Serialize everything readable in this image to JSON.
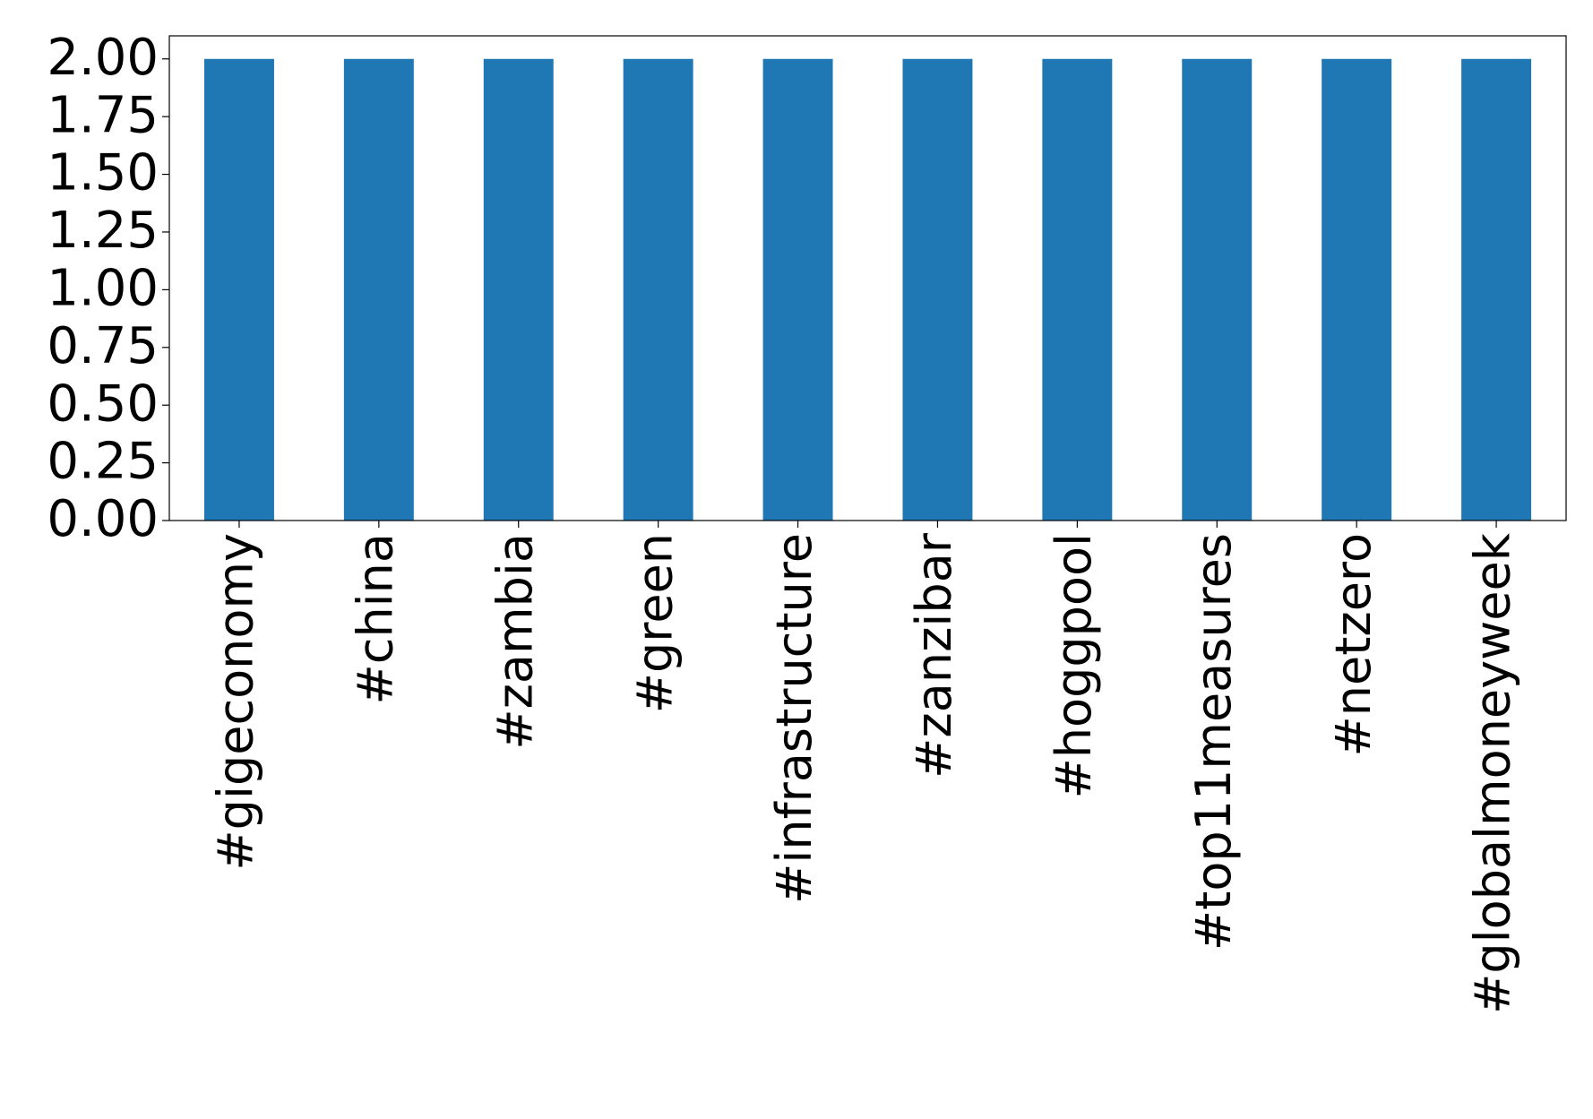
{
  "chart_data": {
    "type": "bar",
    "categories": [
      "#gigeconomy",
      "#china",
      "#zambia",
      "#green",
      "#infrastructure",
      "#zanzibar",
      "#hoggpool",
      "#top11measures",
      "#netzero",
      "#globalmoneyweek"
    ],
    "values": [
      2,
      2,
      2,
      2,
      2,
      2,
      2,
      2,
      2,
      2
    ],
    "color": "#1f77b4",
    "ylim": [
      0,
      2.1
    ],
    "yticks": [
      {
        "value": 0,
        "label": "0.00"
      },
      {
        "value": 0.25,
        "label": "0.25"
      },
      {
        "value": 0.5,
        "label": "0.50"
      },
      {
        "value": 0.75,
        "label": "0.75"
      },
      {
        "value": 1,
        "label": "1.00"
      },
      {
        "value": 1.25,
        "label": "1.25"
      },
      {
        "value": 1.5,
        "label": "1.50"
      },
      {
        "value": 1.75,
        "label": "1.75"
      },
      {
        "value": 2,
        "label": "2.00"
      }
    ],
    "grid": false
  }
}
